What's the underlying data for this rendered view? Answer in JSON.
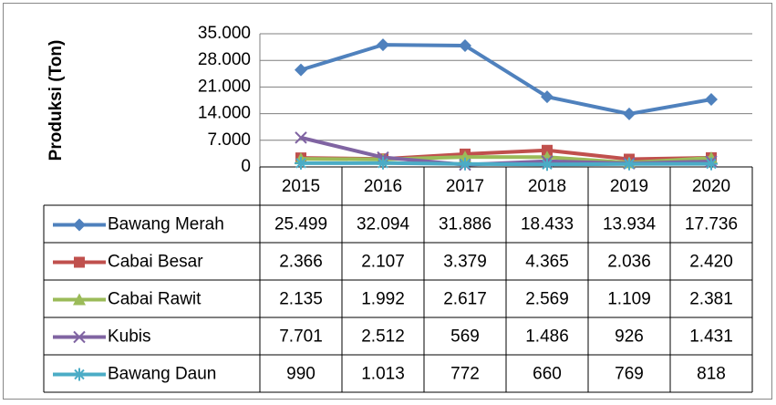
{
  "chart_data": {
    "type": "line",
    "y_label": "Produksi (Ton)",
    "categories": [
      "2015",
      "2016",
      "2017",
      "2018",
      "2019",
      "2020"
    ],
    "ylim": [
      0,
      35000
    ],
    "yticks": [
      0,
      {
        "value": 7000,
        "label": "7.000"
      },
      {
        "value": 14000,
        "label": "14.000"
      },
      {
        "value": 21000,
        "label": "21.000"
      },
      {
        "value": 28000,
        "label": "28.000"
      },
      {
        "value": 35000,
        "label": "35.000"
      }
    ],
    "grid": true,
    "series": [
      {
        "name": "Bawang Merah",
        "color": "#4f81bd",
        "marker": "diamond",
        "values": [
          25499,
          32094,
          31886,
          18433,
          13934,
          17736
        ],
        "value_labels": [
          "25.499",
          "32.094",
          "31.886",
          "18.433",
          "13.934",
          "17.736"
        ]
      },
      {
        "name": "Cabai Besar",
        "color": "#c0504d",
        "marker": "square",
        "values": [
          2366,
          2107,
          3379,
          4365,
          2036,
          2420
        ],
        "value_labels": [
          "2.366",
          "2.107",
          "3.379",
          "4.365",
          "2.036",
          "2.420"
        ]
      },
      {
        "name": "Cabai Rawit",
        "color": "#9bbb59",
        "marker": "triangle",
        "values": [
          2135,
          1992,
          2617,
          2569,
          1109,
          2381
        ],
        "value_labels": [
          "2.135",
          "1.992",
          "2.617",
          "2.569",
          "1.109",
          "2.381"
        ]
      },
      {
        "name": "Kubis",
        "color": "#8064a2",
        "marker": "x",
        "values": [
          7701,
          2512,
          569,
          1486,
          926,
          1431
        ],
        "value_labels": [
          "7.701",
          "2.512",
          "569",
          "1.486",
          "926",
          "1.431"
        ]
      },
      {
        "name": "Bawang Daun",
        "color": "#4bacc6",
        "marker": "star",
        "values": [
          990,
          1013,
          772,
          660,
          769,
          818
        ],
        "value_labels": [
          "990",
          "1.013",
          "772",
          "660",
          "769",
          "818"
        ]
      }
    ]
  }
}
